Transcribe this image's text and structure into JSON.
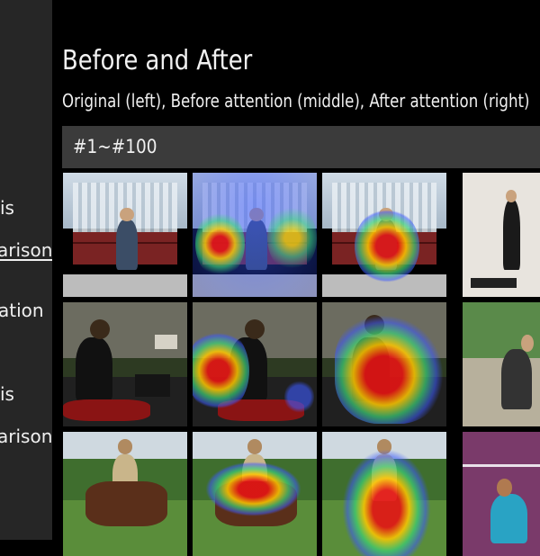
{
  "sidebar": {
    "items": [
      {
        "label": "is",
        "active": false
      },
      {
        "label": "arison",
        "active": true
      },
      {
        "label": "ation",
        "active": false
      },
      {
        "label": "is",
        "active": false
      },
      {
        "label": "arison",
        "active": false
      }
    ]
  },
  "main": {
    "title": "Before and After",
    "subtitle": "Original (left), Before attention (middle), After attention (right)",
    "range": "#1~#100"
  },
  "colors": {
    "sidebar_bg": "#262626",
    "page_bg": "#000000",
    "range_bg": "#3b3b3b",
    "text": "#f0f0f0"
  }
}
